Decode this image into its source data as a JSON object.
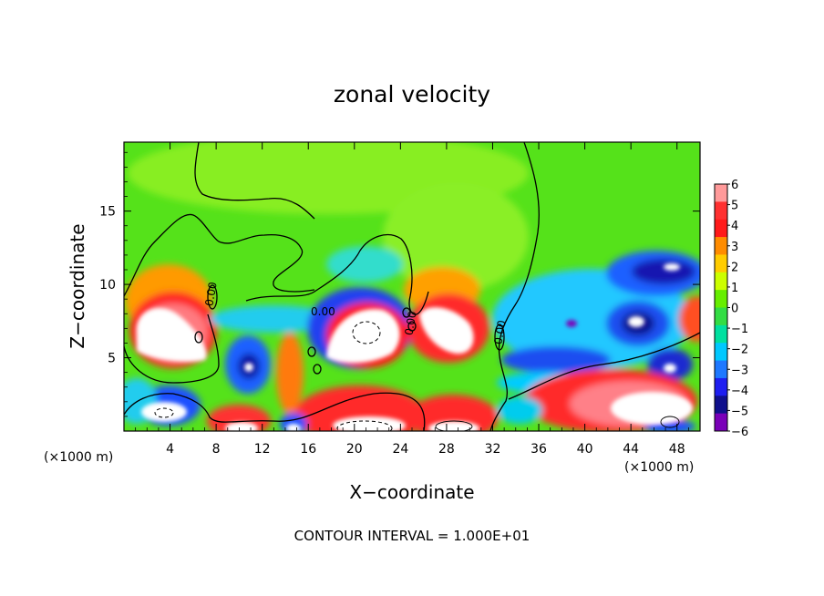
{
  "chart_data": {
    "type": "heatmap",
    "title": "zonal velocity",
    "xlabel": "X−coordinate",
    "ylabel": "Z−coordinate",
    "x_unit_left": "(×1000 m)",
    "x_unit_right": "(×1000 m)",
    "footer": "CONTOUR INTERVAL = 1.000E+01",
    "contour_label": "0.00",
    "xlim": [
      0,
      50
    ],
    "ylim": [
      0,
      19.7
    ],
    "x_ticks": [
      4,
      8,
      12,
      16,
      20,
      24,
      28,
      32,
      36,
      40,
      44,
      48
    ],
    "y_ticks": [
      5,
      10,
      15
    ],
    "colorbar": {
      "range": [
        -6,
        6
      ],
      "ticks": [
        6,
        5,
        4,
        3,
        2,
        1,
        0,
        -1,
        -2,
        -3,
        -4,
        -5,
        -6
      ],
      "tick_labels": [
        "6",
        "5",
        "4",
        "3",
        "2",
        "1",
        "0",
        "−1",
        "−2",
        "−3",
        "−4",
        "−5",
        "−6"
      ],
      "colors": [
        "#ff9a9a",
        "#ff3030",
        "#ff1a1a",
        "#ff8c00",
        "#ffcc00",
        "#ccff00",
        "#66ee00",
        "#33dd44",
        "#00e0a0",
        "#00c8ff",
        "#1e78ff",
        "#1e1ef0",
        "#10108c",
        "#7a00b8"
      ]
    },
    "features": [
      {
        "kind": "positive_core",
        "x": 4.5,
        "z": 6.5,
        "value": ">6"
      },
      {
        "kind": "positive_core",
        "x": 20.0,
        "z": 7.2,
        "value": ">6"
      },
      {
        "kind": "positive_core",
        "x": 28.8,
        "z": 7.4,
        "value": ">6"
      },
      {
        "kind": "positive_core",
        "x": 43.0,
        "z": 1.6,
        "value": ">6"
      },
      {
        "kind": "positive_core",
        "x": 3.5,
        "z": 1.3,
        "value": ">6"
      },
      {
        "kind": "positive_core",
        "x": 11.0,
        "z": 0.4,
        "value": ">6"
      },
      {
        "kind": "positive_core",
        "x": 21.0,
        "z": 0.7,
        "value": ">6"
      },
      {
        "kind": "positive_core",
        "x": 29.0,
        "z": 0.5,
        "value": ">6"
      },
      {
        "kind": "negative_core",
        "x": 10.8,
        "z": 4.5,
        "value": "-6"
      },
      {
        "kind": "negative_core",
        "x": 41.5,
        "z": 11.0,
        "value": "-5"
      },
      {
        "kind": "negative_core",
        "x": 44.5,
        "z": 7.5,
        "value": "-5"
      },
      {
        "kind": "negative_core",
        "x": 47.0,
        "z": 4.2,
        "value": "-5"
      }
    ]
  }
}
